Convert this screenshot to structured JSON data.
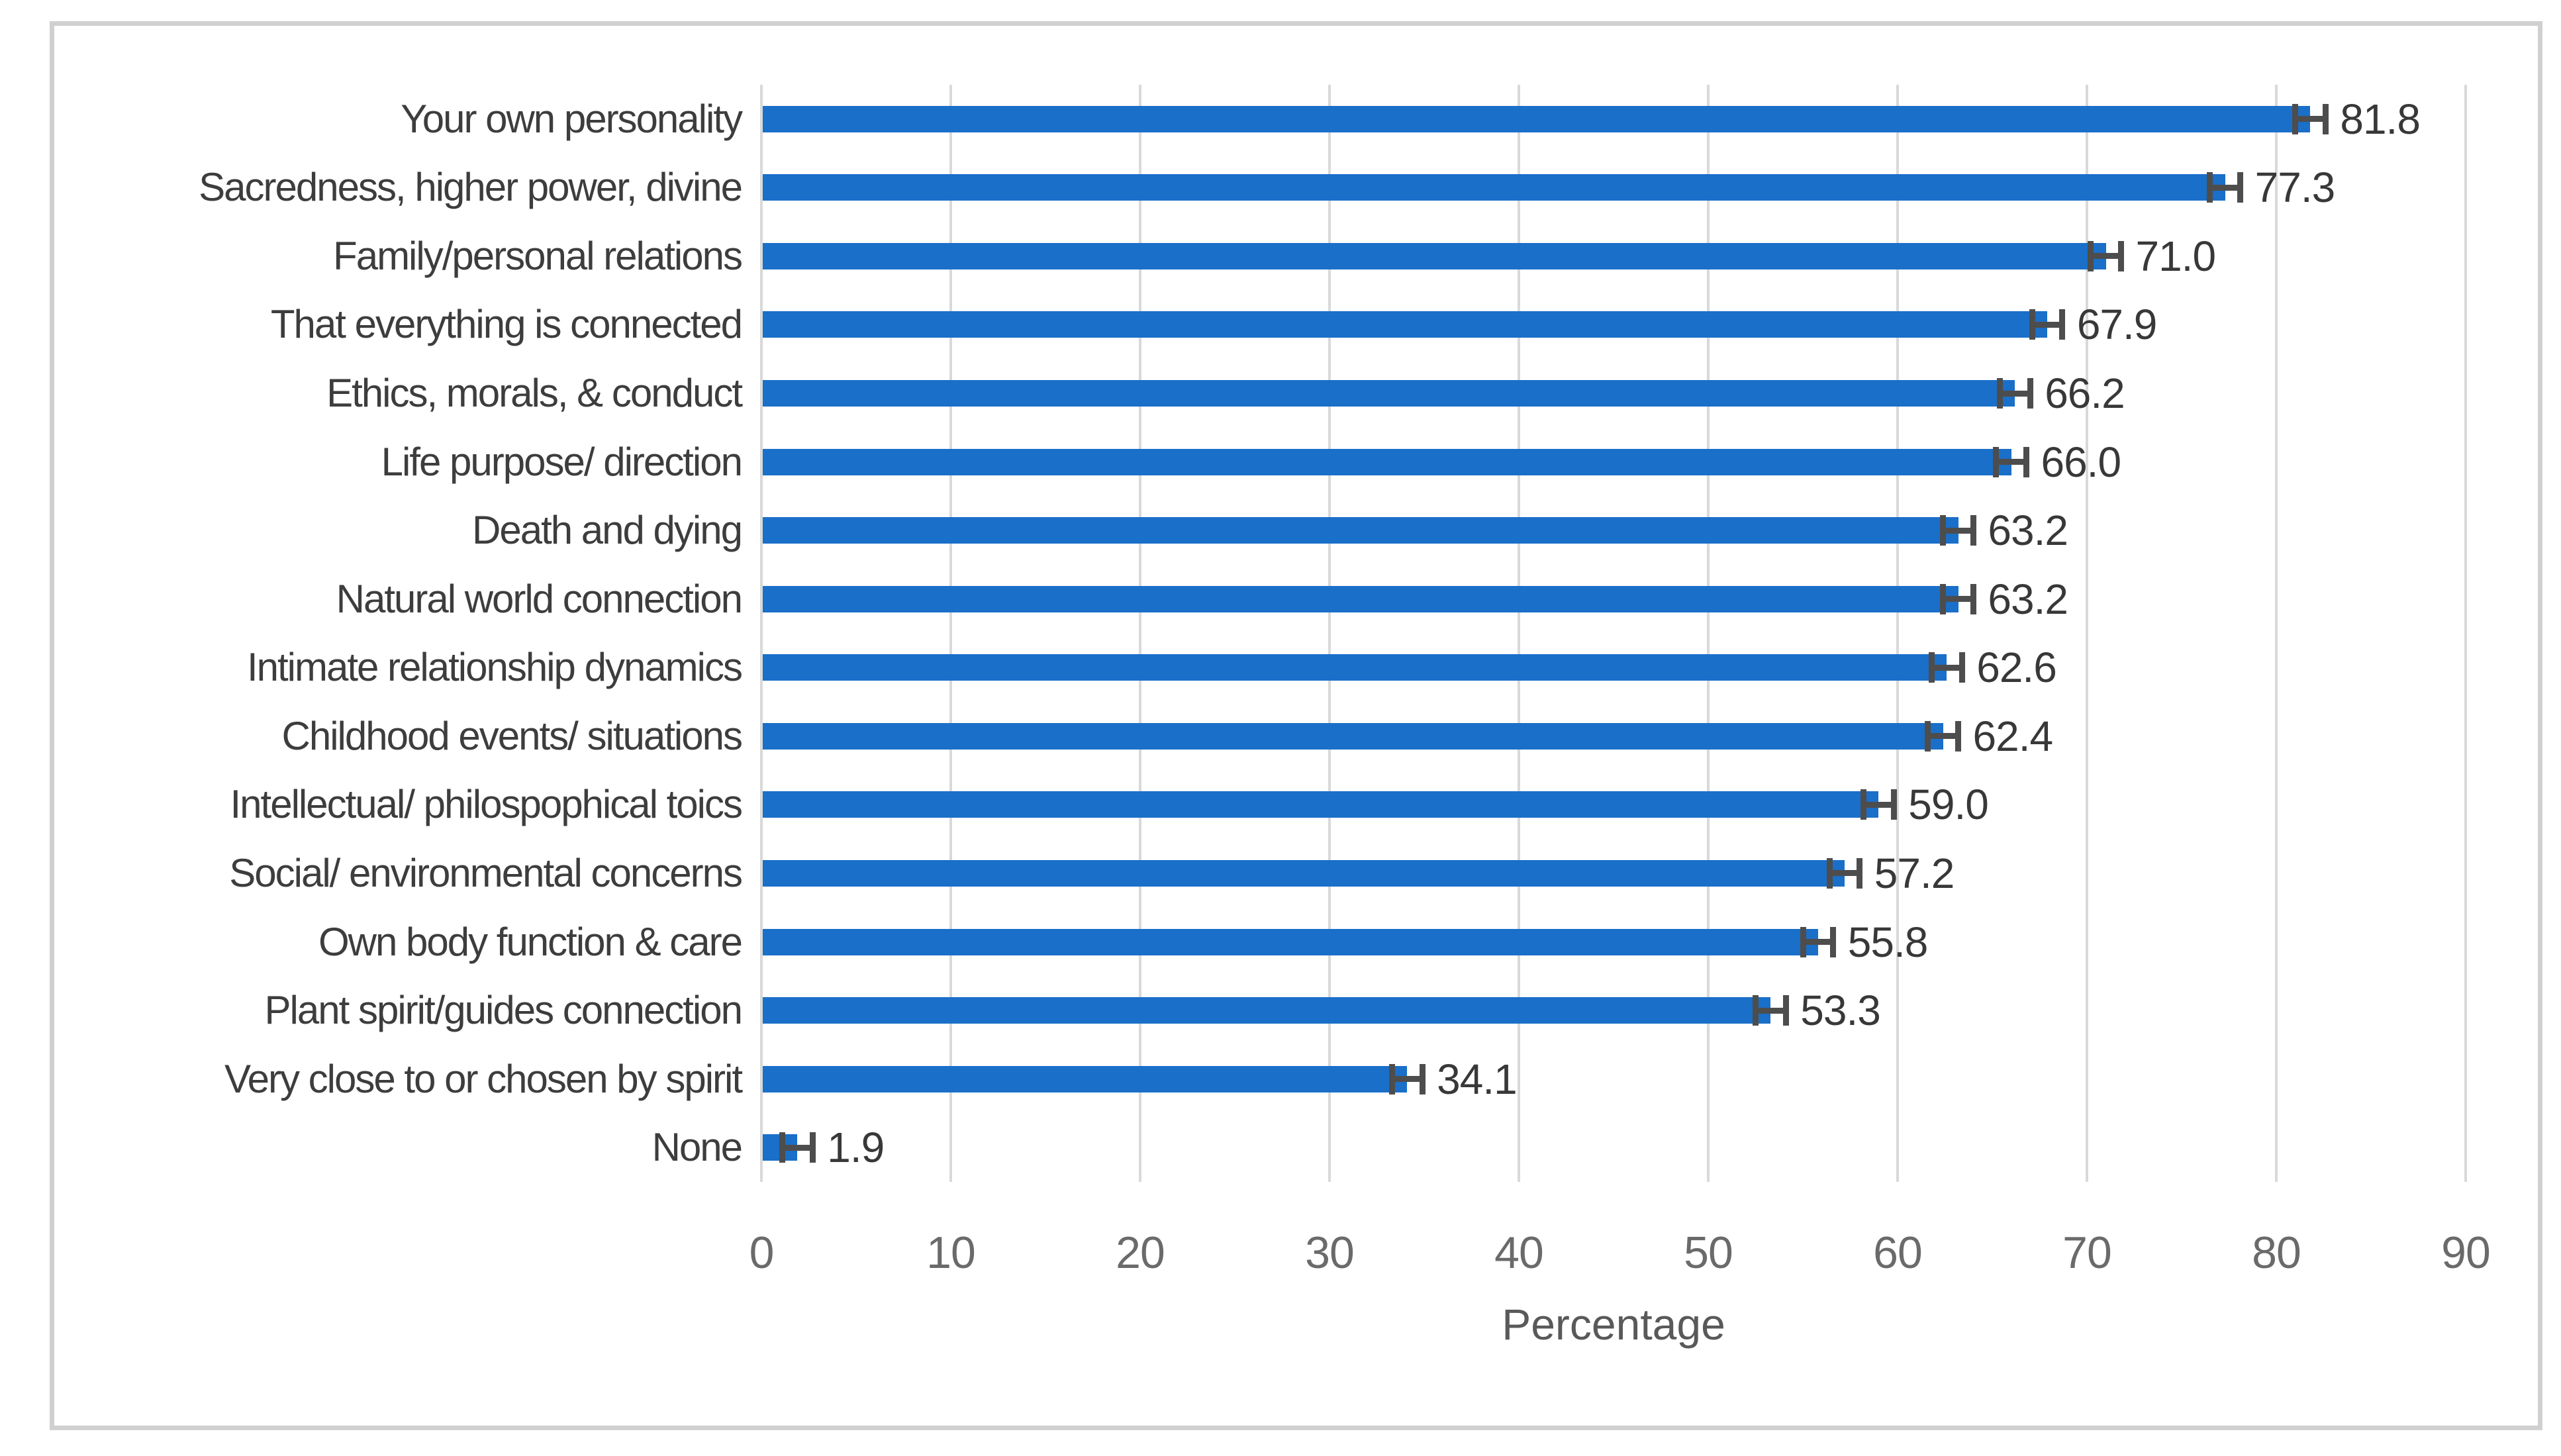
{
  "chart_data": {
    "type": "bar",
    "orientation": "horizontal",
    "title": "",
    "xlabel": "Percentage",
    "ylabel": "",
    "xlim": [
      0,
      90
    ],
    "xtick_step": 10,
    "xticks": [
      "0",
      "10",
      "20",
      "30",
      "40",
      "50",
      "60",
      "70",
      "80",
      "90"
    ],
    "grid": "vertical gridlines on",
    "legend": "none",
    "categories": [
      "Your own personality",
      "Sacredness, higher power, divine",
      "Family/personal relations",
      "That everything is connected",
      "Ethics, morals, & conduct",
      "Life purpose/ direction",
      "Death and dying",
      "Natural world connection",
      "Intimate relationship dynamics",
      "Childhood events/ situations",
      "Intellectual/ philospophical toics",
      "Social/ environmental concerns",
      "Own body function & care",
      "Plant spirit/guides connection",
      "Very close to or chosen by spirit",
      "None"
    ],
    "values": [
      81.8,
      77.3,
      71.0,
      67.9,
      66.2,
      66.0,
      63.2,
      63.2,
      62.6,
      62.4,
      59.0,
      57.2,
      55.8,
      53.3,
      34.1,
      1.9
    ],
    "value_labels": [
      "81.8",
      "77.3",
      "71.0",
      "67.9",
      "66.2",
      "66.0",
      "63.2",
      "63.2",
      "62.6",
      "62.4",
      "59.0",
      "57.2",
      "55.8",
      "53.3",
      "34.1",
      "1.9"
    ],
    "error_bars_estimated_half_width": [
      0.8,
      0.8,
      0.8,
      0.8,
      0.8,
      0.8,
      0.8,
      0.8,
      0.8,
      0.8,
      0.8,
      0.8,
      0.8,
      0.8,
      0.8,
      0.8
    ],
    "colors": {
      "bar_fill": "#1a6fc9",
      "error_bar": "#4d4d4d",
      "gridline": "#d9d9d9",
      "figure_border": "#d0d0d0",
      "category_text": "#3d3d3d",
      "value_text": "#383838",
      "tick_text": "#6a6a6a",
      "axis_title_text": "#595959",
      "background": "#ffffff"
    }
  }
}
